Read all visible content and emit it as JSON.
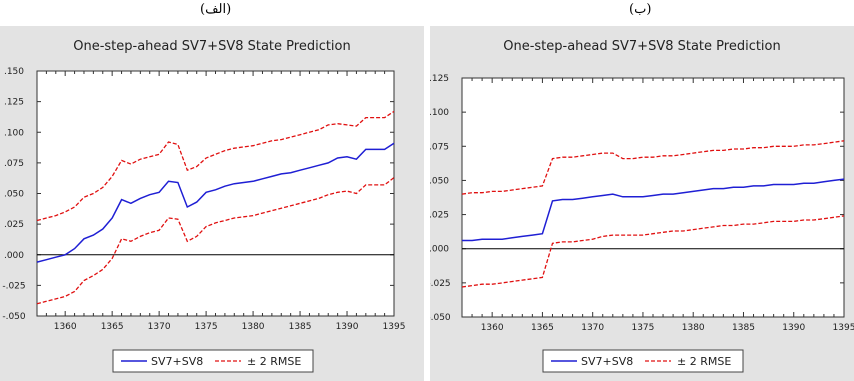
{
  "panels": {
    "a_label": "(الف)",
    "b_label": "(ب)"
  },
  "chart_data": [
    {
      "type": "line",
      "title": "One-step-ahead SV7+SV8 State Prediction",
      "xlim": [
        1357,
        1395
      ],
      "ylim": [
        -0.05,
        0.15
      ],
      "xticks": [
        1360,
        1365,
        1370,
        1375,
        1380,
        1385,
        1390,
        1395
      ],
      "xtick_labels": [
        "1360",
        "1365",
        "1370",
        "1375",
        "1380",
        "1385",
        "1390",
        "1395"
      ],
      "yticks": [
        -0.05,
        -0.025,
        0,
        0.025,
        0.05,
        0.075,
        0.1,
        0.125,
        0.15
      ],
      "ytick_labels": [
        "-.050",
        "-.025",
        ".000",
        ".025",
        ".050",
        ".075",
        ".100",
        ".125",
        ".150"
      ],
      "zero_line": true,
      "legend_position": "bottom-center",
      "x": [
        1357,
        1358,
        1359,
        1360,
        1361,
        1362,
        1363,
        1364,
        1365,
        1366,
        1367,
        1368,
        1369,
        1370,
        1371,
        1372,
        1373,
        1374,
        1375,
        1376,
        1377,
        1378,
        1379,
        1380,
        1381,
        1382,
        1383,
        1384,
        1385,
        1386,
        1387,
        1388,
        1389,
        1390,
        1391,
        1392,
        1393,
        1394,
        1395
      ],
      "series": [
        {
          "name": "SV7+SV8",
          "color": "#1f1fd4",
          "dashed": false,
          "values": [
            -0.006,
            -0.004,
            -0.002,
            0.0,
            0.005,
            0.013,
            0.016,
            0.021,
            0.03,
            0.045,
            0.042,
            0.046,
            0.049,
            0.051,
            0.06,
            0.059,
            0.039,
            0.043,
            0.051,
            0.053,
            0.056,
            0.058,
            0.059,
            0.06,
            0.062,
            0.064,
            0.066,
            0.067,
            0.069,
            0.071,
            0.073,
            0.075,
            0.079,
            0.08,
            0.078,
            0.086,
            0.086,
            0.086,
            0.091
          ]
        },
        {
          "name": "± 2 RMSE",
          "color": "#e01010",
          "dashed": true,
          "values": [
            0.028,
            0.03,
            0.032,
            0.035,
            0.039,
            0.047,
            0.05,
            0.055,
            0.064,
            0.077,
            0.074,
            0.078,
            0.08,
            0.082,
            0.092,
            0.09,
            0.069,
            0.072,
            0.079,
            0.082,
            0.085,
            0.087,
            0.088,
            0.089,
            0.091,
            0.093,
            0.094,
            0.096,
            0.098,
            0.1,
            0.102,
            0.106,
            0.107,
            0.106,
            0.105,
            0.112,
            0.112,
            0.112,
            0.117
          ]
        },
        {
          "name": "",
          "color": "#e01010",
          "dashed": true,
          "values": [
            -0.04,
            -0.038,
            -0.036,
            -0.034,
            -0.03,
            -0.021,
            -0.017,
            -0.012,
            -0.003,
            0.013,
            0.011,
            0.015,
            0.018,
            0.02,
            0.03,
            0.029,
            0.011,
            0.015,
            0.023,
            0.026,
            0.028,
            0.03,
            0.031,
            0.032,
            0.034,
            0.036,
            0.038,
            0.04,
            0.042,
            0.044,
            0.046,
            0.049,
            0.051,
            0.052,
            0.05,
            0.057,
            0.057,
            0.057,
            0.063
          ]
        }
      ]
    },
    {
      "type": "line",
      "title": "One-step-ahead SV7+SV8 State Prediction",
      "xlim": [
        1357,
        1395
      ],
      "ylim": [
        -0.05,
        0.125
      ],
      "xticks": [
        1360,
        1365,
        1370,
        1375,
        1380,
        1385,
        1390,
        1395
      ],
      "xtick_labels": [
        "1360",
        "1365",
        "1370",
        "1375",
        "1380",
        "1385",
        "1390",
        "1395"
      ],
      "yticks": [
        -0.05,
        -0.025,
        0,
        0.025,
        0.05,
        0.075,
        0.1,
        0.125
      ],
      "ytick_labels": [
        "-.050",
        "-.025",
        ".000",
        ".025",
        ".050",
        ".075",
        ".100",
        ".125"
      ],
      "zero_line": true,
      "legend_position": "bottom-center",
      "x": [
        1357,
        1358,
        1359,
        1360,
        1361,
        1362,
        1363,
        1364,
        1365,
        1366,
        1367,
        1368,
        1369,
        1370,
        1371,
        1372,
        1373,
        1374,
        1375,
        1376,
        1377,
        1378,
        1379,
        1380,
        1381,
        1382,
        1383,
        1384,
        1385,
        1386,
        1387,
        1388,
        1389,
        1390,
        1391,
        1392,
        1393,
        1394,
        1395
      ],
      "series": [
        {
          "name": "SV7+SV8",
          "color": "#1f1fd4",
          "dashed": false,
          "values": [
            0.006,
            0.006,
            0.007,
            0.007,
            0.007,
            0.008,
            0.009,
            0.01,
            0.011,
            0.035,
            0.036,
            0.036,
            0.037,
            0.038,
            0.039,
            0.04,
            0.038,
            0.038,
            0.038,
            0.039,
            0.04,
            0.04,
            0.041,
            0.042,
            0.043,
            0.044,
            0.044,
            0.045,
            0.045,
            0.046,
            0.046,
            0.047,
            0.047,
            0.047,
            0.048,
            0.048,
            0.049,
            0.05,
            0.051
          ]
        },
        {
          "name": "± 2 RMSE",
          "color": "#e01010",
          "dashed": true,
          "values": [
            0.04,
            0.041,
            0.041,
            0.042,
            0.042,
            0.043,
            0.044,
            0.045,
            0.046,
            0.066,
            0.067,
            0.067,
            0.068,
            0.069,
            0.07,
            0.07,
            0.066,
            0.066,
            0.067,
            0.067,
            0.068,
            0.068,
            0.069,
            0.07,
            0.071,
            0.072,
            0.072,
            0.073,
            0.073,
            0.074,
            0.074,
            0.075,
            0.075,
            0.075,
            0.076,
            0.076,
            0.077,
            0.078,
            0.079
          ]
        },
        {
          "name": "",
          "color": "#e01010",
          "dashed": true,
          "values": [
            -0.028,
            -0.027,
            -0.026,
            -0.026,
            -0.025,
            -0.024,
            -0.023,
            -0.022,
            -0.021,
            0.004,
            0.005,
            0.005,
            0.006,
            0.007,
            0.009,
            0.01,
            0.01,
            0.01,
            0.01,
            0.011,
            0.012,
            0.013,
            0.013,
            0.014,
            0.015,
            0.016,
            0.017,
            0.017,
            0.018,
            0.018,
            0.019,
            0.02,
            0.02,
            0.02,
            0.021,
            0.021,
            0.022,
            0.023,
            0.024
          ]
        }
      ]
    }
  ]
}
